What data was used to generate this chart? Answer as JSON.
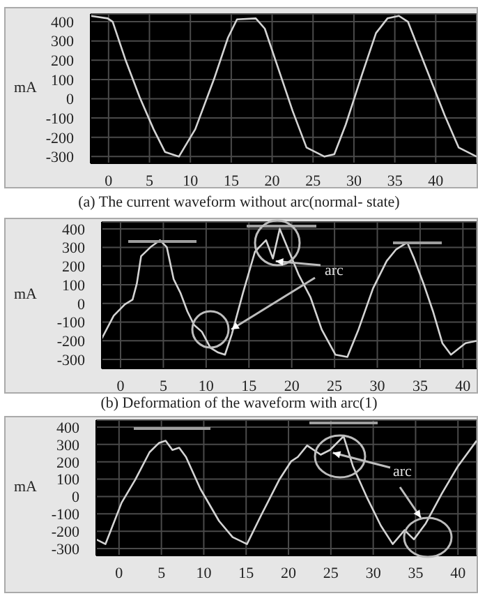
{
  "chart_data": [
    {
      "type": "line",
      "title": "(a) The current waveform without arc(normal- state)",
      "ylabel": "mA",
      "color": "#d4d4d4",
      "grid": true,
      "xlim": [
        -2.2,
        45
      ],
      "ylim": [
        -335,
        440
      ],
      "xticks": [
        0,
        5,
        10,
        15,
        20,
        25,
        30,
        35,
        40
      ],
      "yticks": [
        -300,
        -200,
        -100,
        0,
        100,
        200,
        300,
        400
      ],
      "x": [
        -2.2,
        -0.1,
        0.5,
        2.1,
        3.8,
        5.5,
        6.9,
        8.6,
        10.6,
        12.9,
        14.6,
        15.7,
        18.0,
        19.1,
        20.8,
        22.5,
        24.2,
        26.4,
        27.6,
        29.0,
        31.0,
        32.7,
        34.1,
        35.5,
        36.6,
        38.9,
        41.1,
        42.8,
        45
      ],
      "values": [
        430,
        417,
        400,
        198,
        8,
        -158,
        -276,
        -300,
        -158,
        103,
        317,
        412,
        417,
        364,
        151,
        -63,
        -253,
        -300,
        -288,
        -134,
        127,
        341,
        417,
        430,
        400,
        151,
        -86,
        -253,
        -300
      ]
    },
    {
      "type": "line",
      "title": "(b) Deformation of the waveform with arc(1)",
      "ylabel": "mA",
      "color": "#d4d4d4",
      "grid": true,
      "xlim": [
        -2.2,
        41.6
      ],
      "ylim": [
        -349,
        437
      ],
      "xticks": [
        0,
        5,
        10,
        15,
        20,
        25,
        30,
        35,
        40
      ],
      "yticks": [
        -300,
        -200,
        -100,
        0,
        100,
        200,
        300,
        400
      ],
      "annotations": [
        {
          "text": "arc",
          "x": 17.8,
          "y": 241
        }
      ],
      "x": [
        -2.2,
        -0.8,
        0.5,
        1.4,
        1.9,
        2.4,
        3.5,
        4.6,
        5.4,
        6.2,
        7.0,
        7.8,
        8.6,
        9.5,
        10.5,
        11.4,
        12.2,
        13.0,
        14.3,
        15.7,
        16.2,
        17.0,
        17.8,
        18.6,
        19.7,
        20.8,
        22.2,
        23.5,
        25.1,
        26.5,
        27.8,
        29.5,
        31.1,
        32.2,
        33.5,
        34.3,
        35.4,
        36.5,
        37.6,
        38.6,
        40.3,
        41.6
      ],
      "values": [
        -189,
        -66,
        -5,
        20,
        106,
        253,
        302,
        339,
        302,
        130,
        56,
        -42,
        -116,
        -152,
        -238,
        -263,
        -275,
        -165,
        56,
        277,
        302,
        339,
        241,
        400,
        277,
        155,
        32,
        -140,
        -275,
        -287,
        -140,
        81,
        228,
        290,
        327,
        241,
        106,
        -42,
        -213,
        -275,
        -213,
        -201
      ]
    },
    {
      "type": "line",
      "ylabel": "mA",
      "color": "#d4d4d4",
      "grid": true,
      "xlim": [
        -2.7,
        42.2
      ],
      "ylim": [
        -340,
        440
      ],
      "xticks": [
        0,
        5,
        10,
        15,
        20,
        25,
        30,
        35,
        40
      ],
      "yticks": [
        -300,
        -200,
        -100,
        0,
        100,
        200,
        300,
        400
      ],
      "annotations": [
        {
          "text": "arc",
          "x": 24.9,
          "y": 268
        }
      ],
      "x": [
        -2.7,
        -1.6,
        0.3,
        1.9,
        3.6,
        4.7,
        5.5,
        6.3,
        7.1,
        7.9,
        9.6,
        11.8,
        13.4,
        15.1,
        16.7,
        18.9,
        20.3,
        21.1,
        22.2,
        23.8,
        24.9,
        26.5,
        27.6,
        29.3,
        30.9,
        32.3,
        33.7,
        34.8,
        36.2,
        38.1,
        40.0,
        42.2
      ],
      "values": [
        -247,
        -274,
        -36,
        96,
        255,
        308,
        321,
        268,
        281,
        228,
        44,
        -141,
        -234,
        -274,
        -115,
        96,
        202,
        228,
        294,
        241,
        268,
        347,
        175,
        -10,
        -168,
        -274,
        -194,
        -247,
        -155,
        17,
        175,
        321
      ]
    }
  ]
}
